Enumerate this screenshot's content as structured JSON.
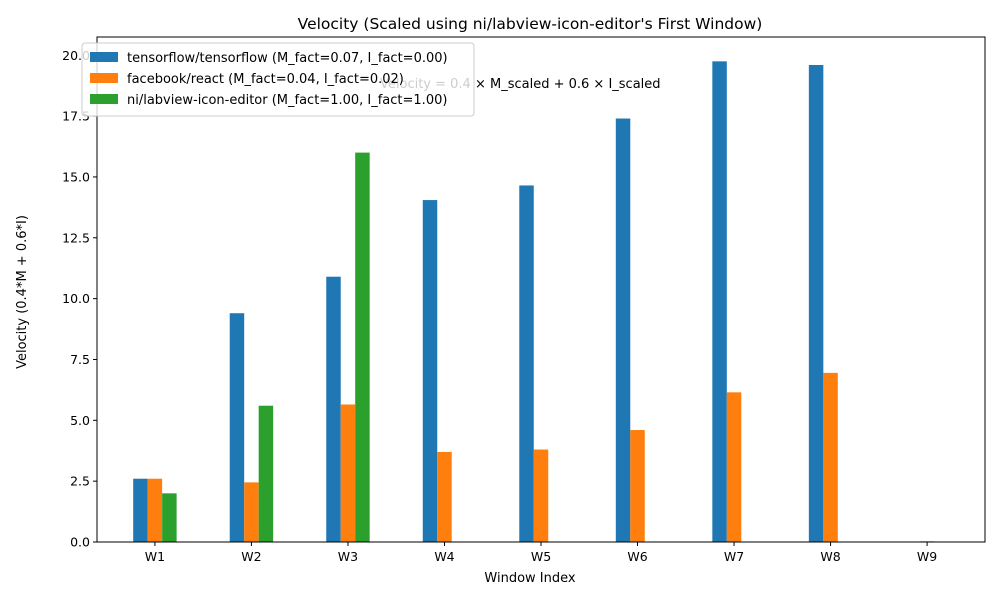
{
  "chart_data": {
    "type": "bar",
    "title": "Velocity (Scaled using ni/labview-icon-editor's First Window)",
    "xlabel": "Window Index",
    "ylabel": "Velocity (0.4*M + 0.6*I)",
    "categories": [
      "W1",
      "W2",
      "W3",
      "W4",
      "W5",
      "W6",
      "W7",
      "W8",
      "W9"
    ],
    "ylim": [
      0,
      20.75
    ],
    "yticks": [
      "0.0",
      "2.5",
      "5.0",
      "7.5",
      "10.0",
      "12.5",
      "15.0",
      "17.5",
      "20.0"
    ],
    "grid": false,
    "legend_position": "top-left",
    "annotation": "Velocity = 0.4 × M_scaled + 0.6 × I_scaled",
    "series": [
      {
        "name": "tensorflow/tensorflow (M_fact=0.07, I_fact=0.00)",
        "color": "#1f77b4",
        "values": [
          2.6,
          9.4,
          10.9,
          14.05,
          14.65,
          17.4,
          19.75,
          19.6,
          0
        ]
      },
      {
        "name": "facebook/react (M_fact=0.04, I_fact=0.02)",
        "color": "#ff7f0e",
        "values": [
          2.6,
          2.45,
          5.65,
          3.7,
          3.8,
          4.6,
          6.15,
          6.95,
          0.03
        ]
      },
      {
        "name": "ni/labview-icon-editor (M_fact=1.00, I_fact=1.00)",
        "color": "#2ca02c",
        "values": [
          2.0,
          5.6,
          16.0,
          0,
          0,
          0,
          0,
          0,
          0
        ]
      }
    ]
  }
}
